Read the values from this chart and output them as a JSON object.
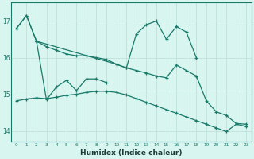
{
  "x": [
    0,
    1,
    2,
    3,
    4,
    5,
    6,
    7,
    8,
    9,
    10,
    11,
    12,
    13,
    14,
    15,
    16,
    17,
    18,
    19,
    20,
    21,
    22,
    23
  ],
  "line1_y": [
    16.8,
    17.15,
    16.45,
    16.3,
    16.2,
    16.1,
    16.05,
    16.05,
    16.0,
    15.95,
    15.82,
    15.72,
    15.65,
    15.58,
    15.5,
    15.45,
    15.8,
    15.65,
    15.5,
    14.82,
    14.52,
    14.42,
    14.2,
    14.18
  ],
  "line2_x": [
    0,
    1,
    2,
    10,
    11,
    12,
    13,
    14,
    15,
    16,
    17,
    18
  ],
  "line2_y": [
    16.8,
    17.15,
    16.45,
    15.82,
    15.72,
    16.65,
    16.9,
    17.0,
    16.5,
    16.85,
    16.7,
    16.0
  ],
  "line3_x": [
    2,
    3,
    4,
    5,
    6,
    7,
    8,
    9
  ],
  "line3_y": [
    16.45,
    14.85,
    15.2,
    15.38,
    15.1,
    15.42,
    15.42,
    15.32
  ],
  "line4_y": [
    14.82,
    14.87,
    14.9,
    14.88,
    14.92,
    14.97,
    15.0,
    15.05,
    15.08,
    15.08,
    15.05,
    14.98,
    14.88,
    14.78,
    14.68,
    14.58,
    14.48,
    14.38,
    14.28,
    14.18,
    14.08,
    13.98,
    14.18,
    14.12
  ],
  "color": "#1a7a6a",
  "bg_color": "#d8f5f0",
  "grid_color": "#c0e0da",
  "yticks": [
    14,
    15,
    16,
    17
  ],
  "xticks": [
    0,
    1,
    2,
    3,
    4,
    5,
    6,
    7,
    8,
    9,
    10,
    11,
    12,
    13,
    14,
    15,
    16,
    17,
    18,
    19,
    20,
    21,
    22,
    23
  ],
  "xlabel": "Humidex (Indice chaleur)",
  "ylim": [
    13.7,
    17.5
  ],
  "xlim": [
    -0.5,
    23.5
  ]
}
